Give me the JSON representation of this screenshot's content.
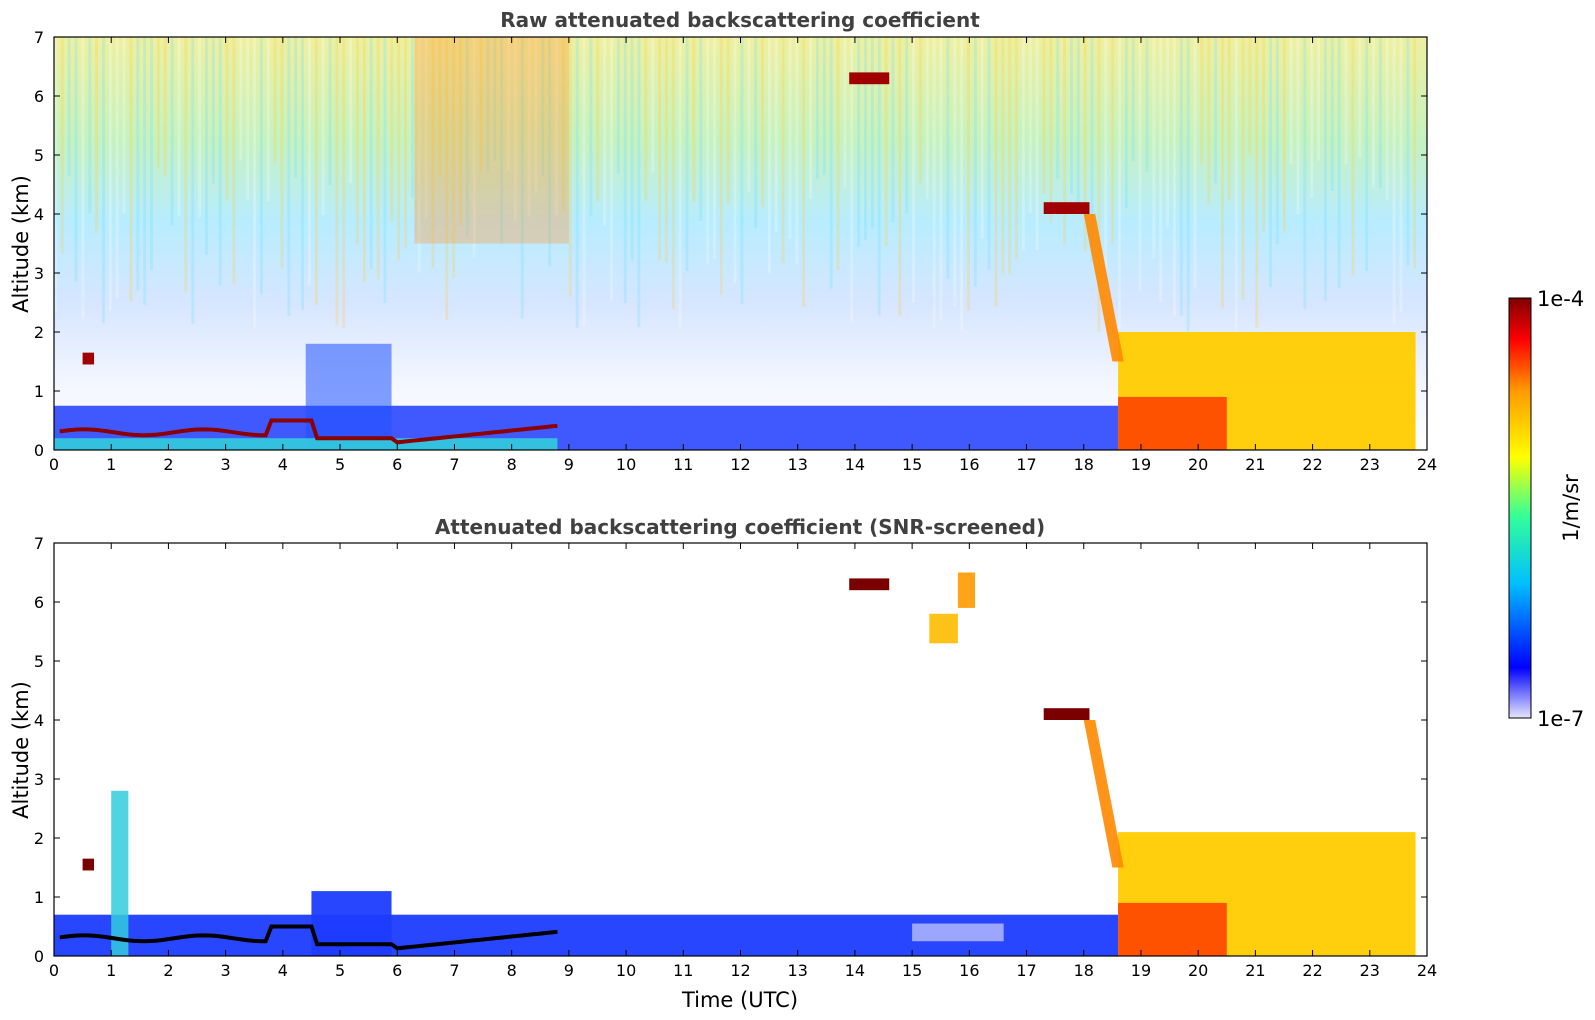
{
  "chart_data": [
    {
      "type": "heatmap",
      "title": "Raw attenuated backscattering coefficient",
      "xlabel": "",
      "ylabel": "Altitude (km)",
      "xlim": [
        0,
        24
      ],
      "ylim": [
        0,
        7
      ],
      "xticks": [
        "0",
        "1",
        "2",
        "3",
        "4",
        "5",
        "6",
        "7",
        "8",
        "9",
        "10",
        "11",
        "12",
        "13",
        "14",
        "15",
        "16",
        "17",
        "18",
        "19",
        "20",
        "21",
        "22",
        "23",
        "24"
      ],
      "yticks": [
        "0",
        "1",
        "2",
        "3",
        "4",
        "5",
        "6",
        "7"
      ],
      "description_features": [
        {
          "feature": "boundary_layer_top",
          "time_range": [
            0.1,
            8.8
          ],
          "altitude_km": 0.3
        },
        {
          "feature": "cloud",
          "time_range": [
            0.5,
            0.7
          ],
          "altitude_km": 1.55
        },
        {
          "feature": "cloud",
          "time_range": [
            13.9,
            14.6
          ],
          "altitude_km": 6.3
        },
        {
          "feature": "cloud",
          "time_range": [
            17.3,
            18.1
          ],
          "altitude_km": 4.1
        },
        {
          "feature": "precipitation_or_low_cloud",
          "time_range": [
            18.6,
            23.8
          ],
          "altitude_km": [
            0,
            2.0
          ]
        }
      ]
    },
    {
      "type": "heatmap",
      "title": "Attenuated backscattering coefficient (SNR-screened)",
      "xlabel": "Time (UTC)",
      "ylabel": "Altitude (km)",
      "xlim": [
        0,
        24
      ],
      "ylim": [
        0,
        7
      ],
      "xticks": [
        "0",
        "1",
        "2",
        "3",
        "4",
        "5",
        "6",
        "7",
        "8",
        "9",
        "10",
        "11",
        "12",
        "13",
        "14",
        "15",
        "16",
        "17",
        "18",
        "19",
        "20",
        "21",
        "22",
        "23",
        "24"
      ],
      "yticks": [
        "0",
        "1",
        "2",
        "3",
        "4",
        "5",
        "6",
        "7"
      ]
    }
  ],
  "colorbar": {
    "max_label": "1e-4",
    "min_label": "1e-7",
    "unit_label": "1/m/sr",
    "colors": [
      "#e6e6fa",
      "#0000ff",
      "#00bfff",
      "#33ff99",
      "#ffff00",
      "#ff9900",
      "#ff0000",
      "#800000"
    ]
  }
}
